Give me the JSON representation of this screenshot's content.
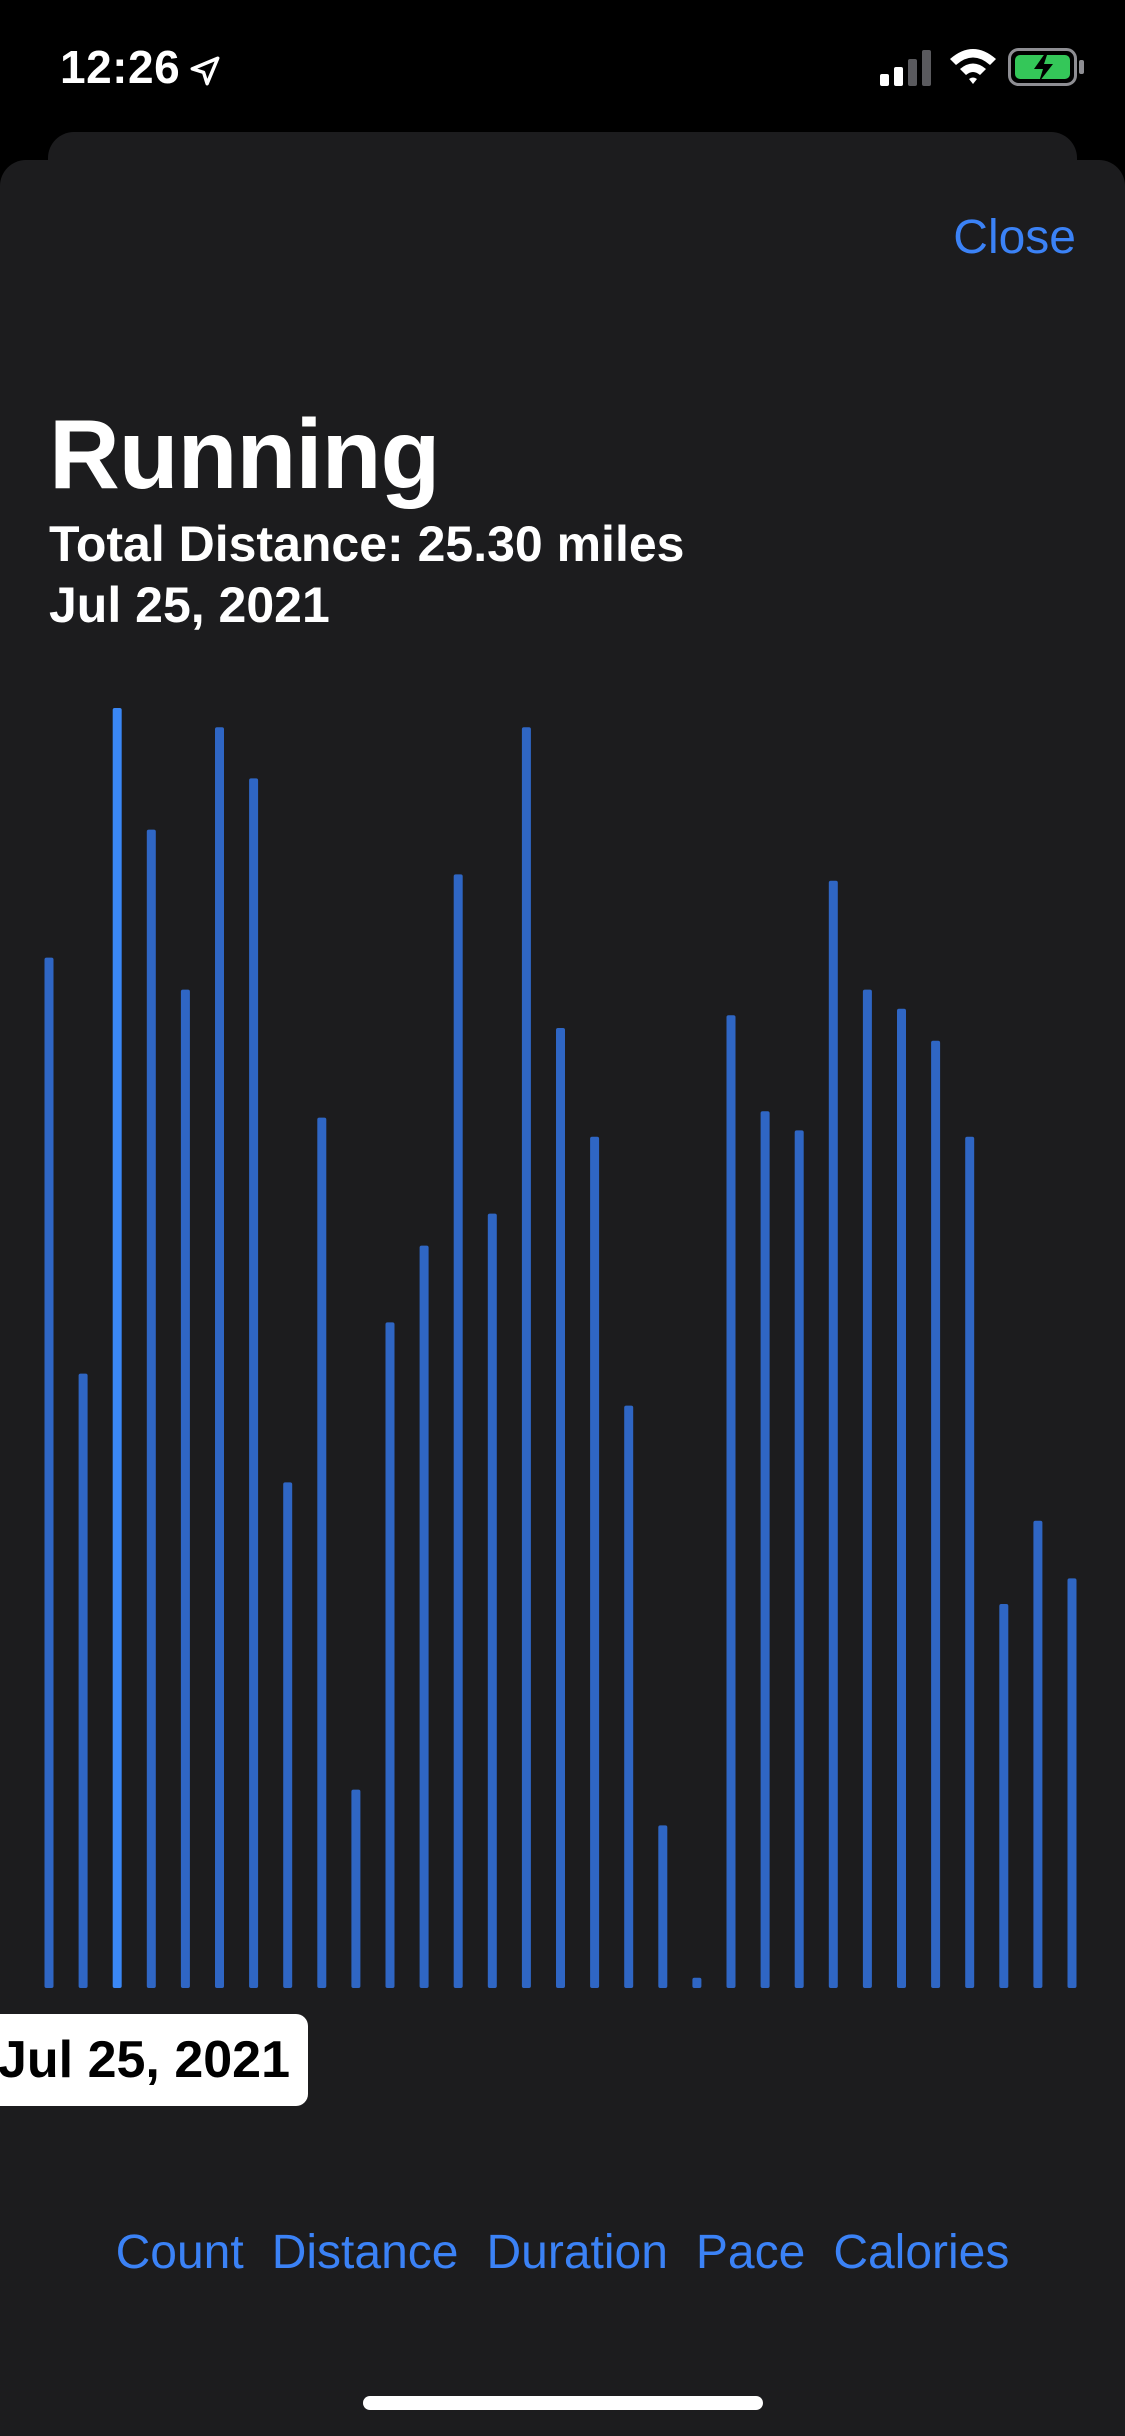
{
  "status_bar": {
    "time": "12:26"
  },
  "header": {
    "close_label": "Close",
    "title": "Running",
    "total_distance": "Total Distance: 25.30 miles",
    "date": "Jul 25, 2021"
  },
  "chart_data": {
    "type": "bar",
    "bar_color": "#2f66c4",
    "highlight_color": "#3a87f5",
    "highlight_index": 2,
    "values": [
      0.805,
      0.48,
      1.0,
      0.905,
      0.78,
      0.985,
      0.945,
      0.395,
      0.68,
      0.155,
      0.52,
      0.58,
      0.87,
      0.605,
      0.985,
      0.75,
      0.665,
      0.455,
      0.127,
      0.008,
      0.76,
      0.685,
      0.67,
      0.865,
      0.78,
      0.765,
      0.74,
      0.665,
      0.3,
      0.365,
      0.32
    ],
    "selected_label": "Jul 25, 2021"
  },
  "metrics": {
    "tabs": [
      "Count",
      "Distance",
      "Duration",
      "Pace",
      "Calories"
    ]
  },
  "colors": {
    "accent": "#3b82f6",
    "sheet_background": "#1c1c1e",
    "battery_fill": "#34c759"
  }
}
